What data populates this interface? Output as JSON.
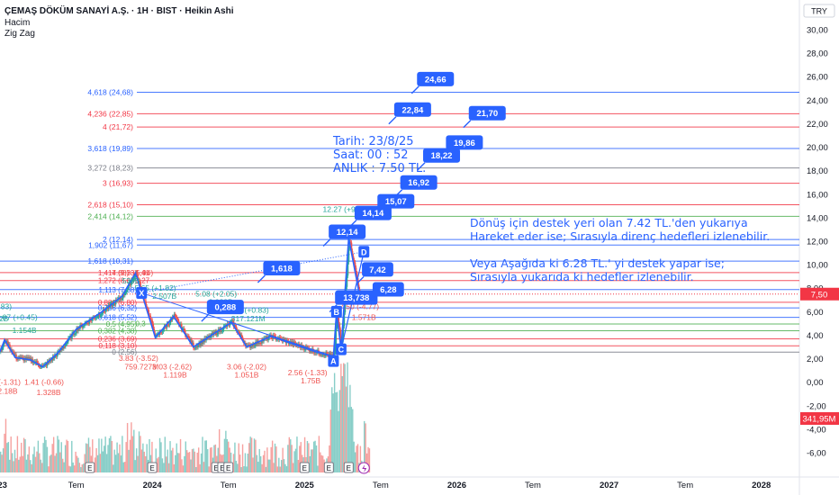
{
  "header": {
    "title": "ÇEMAŞ DÖKÜM SANAYİ A.Ş. · 1H · BIST · Heikin Ashi",
    "indicator_1": "Hacim",
    "indicator_2": "Zig Zag",
    "currency": "TRY"
  },
  "info_box": {
    "line1": "Tarih:   23/8/25",
    "line2": "Saat:     00 : 52",
    "line3": "ANLIK :  7.50 TL."
  },
  "notes": {
    "support_line1": "Dönüş için destek yeri olan 7.42 TL.'den yukarıya",
    "support_line2": "Hareket eder ise; Sırasıyla direnç hedefleri izlenebilir.",
    "alt_line1": "Veya Aşağıda ki 6.28 TL.' yi destek yapar ise;",
    "alt_line2": "Sırasıyla yukarıda ki hedefler izlenebilir."
  },
  "colors": {
    "fib_blue": "#2962ff",
    "fib_red": "#f23645",
    "fib_green": "#4caf50",
    "fib_grey": "#787b86",
    "up": "#26a69a",
    "down": "#ef5350",
    "zigzag": "#2962ff",
    "last_price": "#f23645"
  },
  "chart_data": {
    "type": "candlestick",
    "ylim": [
      -7,
      31
    ],
    "y_ticks": [
      "30,00",
      "28,00",
      "26,00",
      "24,00",
      "22,00",
      "20,00",
      "18,00",
      "16,00",
      "14,00",
      "12,00",
      "10,00",
      "8,00",
      "6,00",
      "4,00",
      "2,00",
      "0,00",
      "-2,00",
      "-4,00",
      "-6,00"
    ],
    "y_tick_values": [
      30,
      28,
      26,
      24,
      22,
      20,
      18,
      16,
      14,
      12,
      10,
      8,
      6,
      4,
      2,
      0,
      -2,
      -4,
      -6
    ],
    "x_ticks": [
      "023",
      "Tem",
      "2024",
      "Tem",
      "2025",
      "Tem",
      "2026",
      "Tem",
      "2027",
      "Tem",
      "2028"
    ],
    "x_tick_positions": [
      2023.0,
      2023.5,
      2024.0,
      2024.5,
      2025.0,
      2025.5,
      2026.0,
      2026.5,
      2027.0,
      2027.5,
      2028.0
    ],
    "x_range": [
      2023.0,
      2028.25
    ],
    "last_price": {
      "value": 7.5,
      "label": "7,50"
    },
    "last_volume": {
      "label": "341,95M"
    },
    "fib_levels": [
      {
        "label": "4,618 (24,68)",
        "value": 24.68,
        "color": "fib_blue"
      },
      {
        "label": "4,236 (22,85)",
        "value": 22.85,
        "color": "fib_red"
      },
      {
        "label": "4 (21,72)",
        "value": 21.72,
        "color": "fib_red"
      },
      {
        "label": "3,618 (19,89)",
        "value": 19.89,
        "color": "fib_blue"
      },
      {
        "label": "3,272 (18,23)",
        "value": 18.23,
        "color": "fib_grey"
      },
      {
        "label": "3 (16,93)",
        "value": 16.93,
        "color": "fib_red"
      },
      {
        "label": "2,618 (15,10)",
        "value": 15.1,
        "color": "fib_red"
      },
      {
        "label": "2,414 (14,12)",
        "value": 14.12,
        "color": "fib_green"
      },
      {
        "label": "2 (12,14)",
        "value": 12.14,
        "color": "fib_blue"
      },
      {
        "label": "1,902 (11,67)",
        "value": 11.67,
        "color": "fib_blue"
      },
      {
        "label": "1,618 (10,31)",
        "value": 10.31,
        "color": "fib_blue"
      },
      {
        "label": "1,414 (9,33)",
        "value": 9.33,
        "color": "fib_red"
      },
      {
        "label": "1,272 (8,65)",
        "value": 8.65,
        "color": "fib_red"
      },
      {
        "label": "1,113 (7,88)",
        "value": 7.88,
        "color": "fib_blue"
      },
      {
        "label": "0,886 (6,80)",
        "value": 6.8,
        "color": "fib_red"
      },
      {
        "label": "0,786 (6,32)",
        "value": 6.32,
        "color": "fib_blue"
      },
      {
        "label": "0,618 (5,52)",
        "value": 5.52,
        "color": "fib_blue"
      },
      {
        "label": "0,5 (4,95)",
        "value": 4.95,
        "color": "fib_green"
      },
      {
        "label": "0,382 (4,38)",
        "value": 4.38,
        "color": "fib_green"
      },
      {
        "label": "0,236 (3,69)",
        "value": 3.69,
        "color": "fib_red"
      },
      {
        "label": "0,118 (3,10)",
        "value": 3.1,
        "color": "fib_red"
      },
      {
        "label": "0 (2,56)",
        "value": 2.56,
        "color": "fib_grey"
      }
    ],
    "targets": [
      {
        "label": "24,66",
        "x": 2025.86,
        "y": 25.8
      },
      {
        "label": "22,84",
        "x": 2025.71,
        "y": 23.2
      },
      {
        "label": "21,70",
        "x": 2026.2,
        "y": 22.9
      },
      {
        "label": "19,86",
        "x": 2026.05,
        "y": 20.4
      },
      {
        "label": "18,22",
        "x": 2025.9,
        "y": 19.3
      },
      {
        "label": "16,92",
        "x": 2025.75,
        "y": 17.0
      },
      {
        "label": "15,07",
        "x": 2025.6,
        "y": 15.4
      },
      {
        "label": "14,14",
        "x": 2025.45,
        "y": 14.4
      },
      {
        "label": "12,14",
        "x": 2025.28,
        "y": 12.8
      },
      {
        "label": "1,618",
        "x": 2024.85,
        "y": 9.7
      },
      {
        "label": "7,42",
        "x": 2025.48,
        "y": 9.6
      },
      {
        "label": "13,738",
        "x": 2025.34,
        "y": 7.2
      },
      {
        "label": "6,28",
        "x": 2025.55,
        "y": 7.9
      },
      {
        "label": "0,288",
        "x": 2024.48,
        "y": 6.4
      }
    ],
    "points": [
      {
        "label": "X",
        "x": 2023.93,
        "y": 7.6
      },
      {
        "label": "A",
        "x": 2025.19,
        "y": 1.8
      },
      {
        "label": "B",
        "x": 2025.21,
        "y": 6.0
      },
      {
        "label": "C",
        "x": 2025.24,
        "y": 2.8
      },
      {
        "label": "D",
        "x": 2025.39,
        "y": 11.1
      }
    ],
    "zigzag_labels": [
      {
        "label": "1.83)",
        "x": 2023.02,
        "y": 6.2,
        "color": "up"
      },
      {
        "label": "12B",
        "x": 2023.01,
        "y": 5.2,
        "color": "up"
      },
      {
        "label": "2.07 (+0.45)",
        "x": 2023.11,
        "y": 5.3,
        "color": "up"
      },
      {
        "label": "1.154B",
        "x": 2023.16,
        "y": 4.2,
        "color": "up"
      },
      {
        "label": ".62 (-1.31)",
        "x": 2023.02,
        "y": -0.2,
        "color": "down"
      },
      {
        "label": "2.18B",
        "x": 2023.05,
        "y": -1.0,
        "color": "down"
      },
      {
        "label": "1.41 (-0.66)",
        "x": 2023.29,
        "y": -0.2,
        "color": "down"
      },
      {
        "label": "1.328B",
        "x": 2023.32,
        "y": -1.1,
        "color": "down"
      },
      {
        "label": "7.88) +5.94)",
        "x": 2023.87,
        "y": 9.1,
        "color": "down"
      },
      {
        "label": "539B",
        "x": 2023.86,
        "y": 8.4,
        "color": "up"
      },
      {
        "label": "5.65 (+1.82)",
        "x": 2024.02,
        "y": 7.8,
        "color": "up"
      },
      {
        "label": "2.507B",
        "x": 2024.08,
        "y": 7.1,
        "color": "up"
      },
      {
        "label": "3.83 (-3.52)",
        "x": 2023.91,
        "y": 1.8,
        "color": "down"
      },
      {
        "label": "759.727M",
        "x": 2023.93,
        "y": 1.1,
        "color": "down"
      },
      {
        "label": "3.03 (-2.62)",
        "x": 2024.13,
        "y": 1.1,
        "color": "down"
      },
      {
        "label": "1.119B",
        "x": 2024.15,
        "y": 0.4,
        "color": "down"
      },
      {
        "label": "5.08 (+2.05)",
        "x": 2024.42,
        "y": 7.3,
        "color": "up"
      },
      {
        "label": "3.038B",
        "x": 2024.45,
        "y": 6.6,
        "color": "up"
      },
      {
        "label": "3.89 (+0.83)",
        "x": 2024.63,
        "y": 5.9,
        "color": "up"
      },
      {
        "label": "317.121M",
        "x": 2024.63,
        "y": 5.2,
        "color": "up"
      },
      {
        "label": "3.06 (-2.02)",
        "x": 2024.62,
        "y": 1.1,
        "color": "down"
      },
      {
        "label": "1.051B",
        "x": 2024.62,
        "y": 0.4,
        "color": "down"
      },
      {
        "label": "2.56 (-1.33)",
        "x": 2025.02,
        "y": 0.6,
        "color": "down"
      },
      {
        "label": "1.75B",
        "x": 2025.04,
        "y": -0.1,
        "color": "down"
      },
      {
        "label": "12.27 (+9.71)",
        "x": 2025.27,
        "y": 14.5,
        "color": "up"
      },
      {
        "label": "7.50 (-4.77)",
        "x": 2025.36,
        "y": 6.2,
        "color": "down"
      },
      {
        "label": "1.571B",
        "x": 2025.39,
        "y": 5.3,
        "color": "down"
      }
    ],
    "fib_extra_labels": [
      {
        "label": "1,41",
        "x": 2023.89,
        "y": 9.33,
        "color": "fib_red"
      },
      {
        "label": "1,27",
        "x": 2023.89,
        "y": 8.65,
        "color": "fib_red"
      },
      {
        "label": "1,1",
        "x": 2023.89,
        "y": 7.88,
        "color": "fib_blue"
      },
      {
        "label": "0,3",
        "x": 2023.89,
        "y": 5.0,
        "color": "fib_green"
      }
    ],
    "zigzag_path": [
      [
        2023.0,
        2.6
      ],
      [
        2023.03,
        3.6
      ],
      [
        2023.1,
        2.1
      ],
      [
        2023.2,
        1.9
      ],
      [
        2023.28,
        1.3
      ],
      [
        2023.38,
        2.5
      ],
      [
        2023.5,
        4.5
      ],
      [
        2023.67,
        6.0
      ],
      [
        2023.8,
        7.3
      ],
      [
        2023.89,
        9.3
      ],
      [
        2023.93,
        7.6
      ],
      [
        2024.02,
        3.8
      ],
      [
        2024.14,
        5.6
      ],
      [
        2024.27,
        3.0
      ],
      [
        2024.52,
        5.1
      ],
      [
        2024.62,
        3.0
      ],
      [
        2024.78,
        3.9
      ],
      [
        2024.96,
        3.1
      ],
      [
        2025.08,
        2.56
      ],
      [
        2025.19,
        2.2
      ],
      [
        2025.21,
        6.0
      ],
      [
        2025.24,
        2.8
      ],
      [
        2025.29,
        12.27
      ],
      [
        2025.36,
        7.5
      ]
    ],
    "dotted_line": [
      [
        2023.93,
        7.6
      ],
      [
        2025.39,
        11.1
      ]
    ],
    "harmonic_xab": [
      [
        2023.93,
        7.6
      ],
      [
        2025.19,
        2.2
      ],
      [
        2024.52,
        5.1
      ]
    ],
    "pattern_lines": [
      [
        [
          2025.19,
          1.8
        ],
        [
          2025.21,
          6.0
        ],
        [
          2025.24,
          2.8
        ],
        [
          2025.39,
          11.1
        ]
      ]
    ],
    "events": [
      {
        "label": "E",
        "x": 2023.59
      },
      {
        "label": "E",
        "x": 2024.0
      },
      {
        "label": "E",
        "x": 2024.42
      },
      {
        "label": "E",
        "x": 2024.46
      },
      {
        "label": "E",
        "x": 2024.5
      },
      {
        "label": "E",
        "x": 2025.0
      },
      {
        "label": "E",
        "x": 2025.16
      },
      {
        "label": "E",
        "x": 2025.29
      }
    ]
  }
}
